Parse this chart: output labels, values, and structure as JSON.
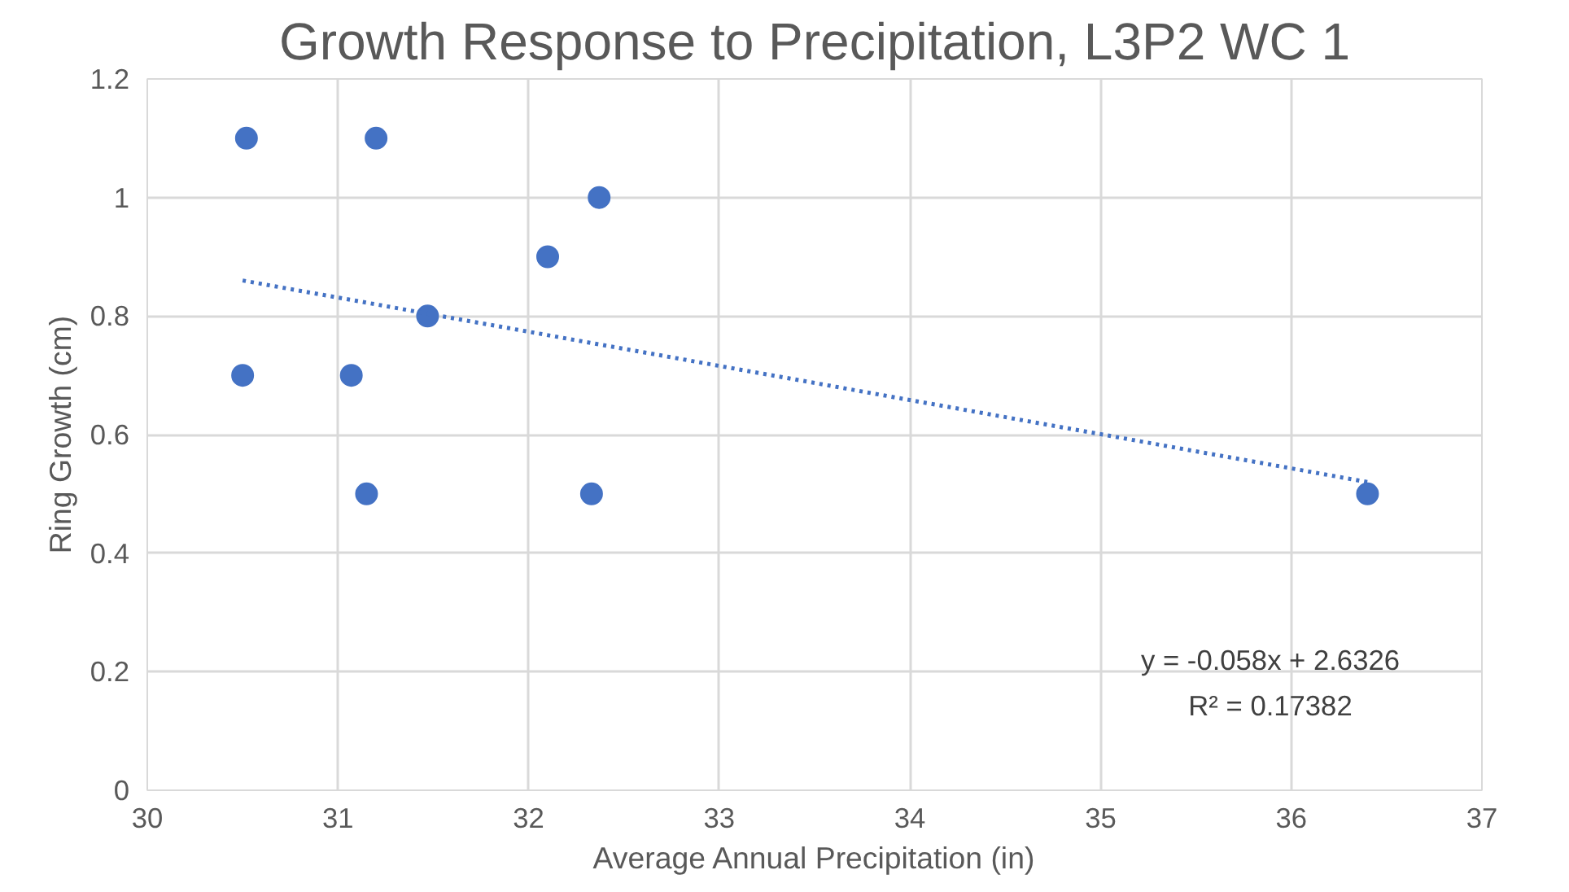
{
  "chart_data": {
    "type": "scatter",
    "title": "Growth Response to Precipitation, L3P2 WC 1",
    "xlabel": "Average Annual Precipitation (in)",
    "ylabel": "Ring Growth (cm)",
    "xlim": [
      30,
      37
    ],
    "xticks": [
      30,
      31,
      32,
      33,
      34,
      35,
      36,
      37
    ],
    "ylim": [
      0,
      1.2
    ],
    "yticks": [
      0,
      0.2,
      0.4,
      0.6,
      0.8,
      1,
      1.2
    ],
    "grid": true,
    "marker": "circle",
    "series": [
      {
        "color": "#4472c4",
        "x": [
          30.52,
          31.2,
          32.37,
          32.1,
          31.47,
          30.5,
          31.07,
          31.15,
          32.33,
          36.4
        ],
        "values": [
          1.1,
          1.1,
          1.0,
          0.9,
          0.8,
          0.7,
          0.7,
          0.5,
          0.5,
          0.5
        ]
      },
      {
        "type": "line",
        "color": "#4472c4",
        "line_style": "dotted",
        "marker": "none",
        "x": [
          30.5,
          36.4
        ],
        "values": [
          0.86,
          0.52
        ]
      }
    ],
    "annotations": [
      "y = -0.058x + 2.6326",
      "R² = 0.17382"
    ]
  }
}
